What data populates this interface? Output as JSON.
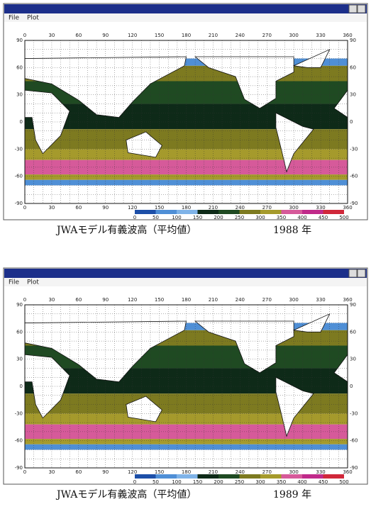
{
  "panels": [
    {
      "menu": [
        "File",
        "Plot"
      ],
      "x_ticks": [
        0,
        30,
        60,
        90,
        120,
        150,
        180,
        210,
        240,
        270,
        300,
        330,
        360
      ],
      "y_ticks": [
        90,
        60,
        30,
        0,
        -30,
        -60,
        -90
      ],
      "colorbar_ticks": [
        0,
        50,
        100,
        150,
        200,
        250,
        300,
        350,
        400,
        450,
        500
      ],
      "caption": "JWAモデル有義波高（平均値）",
      "year": "1988 年"
    },
    {
      "menu": [
        "File",
        "Plot"
      ],
      "x_ticks": [
        0,
        30,
        60,
        90,
        120,
        150,
        180,
        210,
        240,
        270,
        300,
        330,
        360
      ],
      "y_ticks": [
        90,
        60,
        30,
        0,
        -30,
        -60,
        -90
      ],
      "colorbar_ticks": [
        0,
        50,
        100,
        150,
        200,
        250,
        300,
        350,
        400,
        450,
        500
      ],
      "caption": "JWAモデル有義波高（平均値）",
      "year": "1989 年"
    }
  ]
}
